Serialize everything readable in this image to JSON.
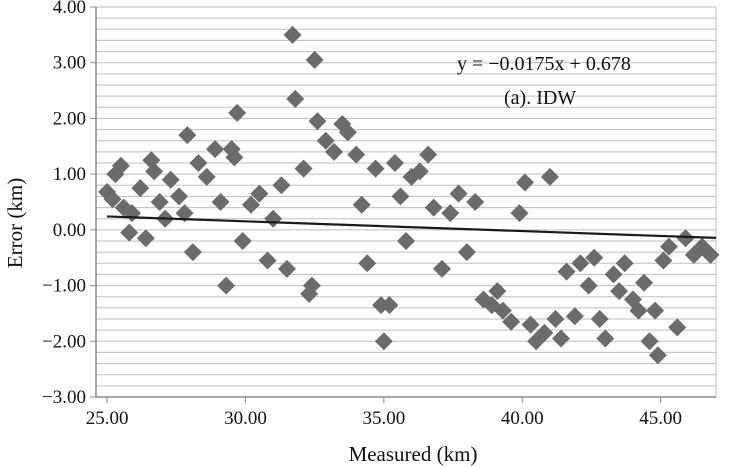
{
  "chart_data": {
    "type": "scatter",
    "title": "",
    "xlabel": "Measured (km)",
    "ylabel": "Error (km)",
    "xlim": [
      24.6,
      47.0
    ],
    "ylim": [
      -3.0,
      4.0
    ],
    "xticks": [
      "25.00",
      "30.00",
      "35.00",
      "40.00",
      "45.00"
    ],
    "yticks": [
      "4.00",
      "3.00",
      "2.00",
      "1.00",
      "0.00",
      "−1.00",
      "−2.00",
      "−3.00"
    ],
    "grid": "horizontal",
    "marker": "diamond",
    "colors": {
      "points": "#6b6b6b",
      "trend": "#1a1a1a",
      "grid": "#bdbdbd",
      "axis": "#8a8a8a"
    },
    "annotations": [
      "y = −0.0175x + 0.678",
      "(a). IDW"
    ],
    "trendline": {
      "slope": -0.0175,
      "intercept": 0.678,
      "x": [
        25.0,
        47.0
      ]
    },
    "series": [
      {
        "points": [
          [
            25.0,
            0.68
          ],
          [
            25.2,
            0.55
          ],
          [
            25.3,
            1.0
          ],
          [
            25.5,
            1.15
          ],
          [
            25.6,
            0.4
          ],
          [
            25.9,
            0.3
          ],
          [
            25.8,
            -0.05
          ],
          [
            26.2,
            0.75
          ],
          [
            26.4,
            -0.15
          ],
          [
            26.6,
            1.25
          ],
          [
            26.7,
            1.05
          ],
          [
            26.9,
            0.5
          ],
          [
            27.1,
            0.2
          ],
          [
            27.3,
            0.9
          ],
          [
            27.6,
            0.6
          ],
          [
            27.8,
            0.3
          ],
          [
            27.9,
            1.7
          ],
          [
            28.1,
            -0.4
          ],
          [
            28.3,
            1.2
          ],
          [
            28.6,
            0.95
          ],
          [
            28.9,
            1.45
          ],
          [
            29.1,
            0.5
          ],
          [
            29.3,
            -1.0
          ],
          [
            29.5,
            1.45
          ],
          [
            29.6,
            1.3
          ],
          [
            29.7,
            2.1
          ],
          [
            29.9,
            -0.2
          ],
          [
            30.2,
            0.45
          ],
          [
            30.5,
            0.65
          ],
          [
            30.8,
            -0.55
          ],
          [
            31.0,
            0.2
          ],
          [
            31.3,
            0.8
          ],
          [
            31.5,
            -0.7
          ],
          [
            31.7,
            3.5
          ],
          [
            31.8,
            2.35
          ],
          [
            32.1,
            1.1
          ],
          [
            32.3,
            -1.15
          ],
          [
            32.4,
            -1.0
          ],
          [
            32.5,
            3.05
          ],
          [
            32.6,
            1.95
          ],
          [
            32.9,
            1.6
          ],
          [
            33.2,
            1.4
          ],
          [
            33.5,
            1.9
          ],
          [
            33.7,
            1.75
          ],
          [
            34.0,
            1.35
          ],
          [
            34.2,
            0.45
          ],
          [
            34.4,
            -0.6
          ],
          [
            34.7,
            1.1
          ],
          [
            34.9,
            -1.35
          ],
          [
            35.0,
            -2.0
          ],
          [
            35.2,
            -1.35
          ],
          [
            35.4,
            1.2
          ],
          [
            35.6,
            0.6
          ],
          [
            35.8,
            -0.2
          ],
          [
            36.0,
            0.95
          ],
          [
            36.3,
            1.05
          ],
          [
            36.6,
            1.35
          ],
          [
            36.8,
            0.4
          ],
          [
            37.1,
            -0.7
          ],
          [
            37.4,
            0.3
          ],
          [
            37.7,
            0.65
          ],
          [
            38.0,
            -0.4
          ],
          [
            38.3,
            0.5
          ],
          [
            38.6,
            -1.25
          ],
          [
            38.9,
            -1.35
          ],
          [
            39.1,
            -1.1
          ],
          [
            39.3,
            -1.45
          ],
          [
            39.6,
            -1.65
          ],
          [
            39.9,
            0.3
          ],
          [
            40.1,
            0.85
          ],
          [
            40.3,
            -1.7
          ],
          [
            40.5,
            -2.0
          ],
          [
            40.8,
            -1.85
          ],
          [
            41.0,
            0.95
          ],
          [
            41.2,
            -1.6
          ],
          [
            41.4,
            -1.95
          ],
          [
            41.6,
            -0.75
          ],
          [
            41.9,
            -1.55
          ],
          [
            42.1,
            -0.6
          ],
          [
            42.4,
            -1.0
          ],
          [
            42.6,
            -0.5
          ],
          [
            42.8,
            -1.6
          ],
          [
            43.0,
            -1.95
          ],
          [
            43.3,
            -0.8
          ],
          [
            43.5,
            -1.1
          ],
          [
            43.7,
            -0.6
          ],
          [
            44.0,
            -1.25
          ],
          [
            44.2,
            -1.45
          ],
          [
            44.4,
            -0.95
          ],
          [
            44.6,
            -2.0
          ],
          [
            44.8,
            -1.45
          ],
          [
            44.9,
            -2.25
          ],
          [
            45.1,
            -0.55
          ],
          [
            45.3,
            -0.3
          ],
          [
            45.6,
            -1.75
          ],
          [
            45.9,
            -0.15
          ],
          [
            46.2,
            -0.45
          ],
          [
            46.5,
            -0.3
          ],
          [
            46.8,
            -0.45
          ]
        ]
      }
    ]
  }
}
